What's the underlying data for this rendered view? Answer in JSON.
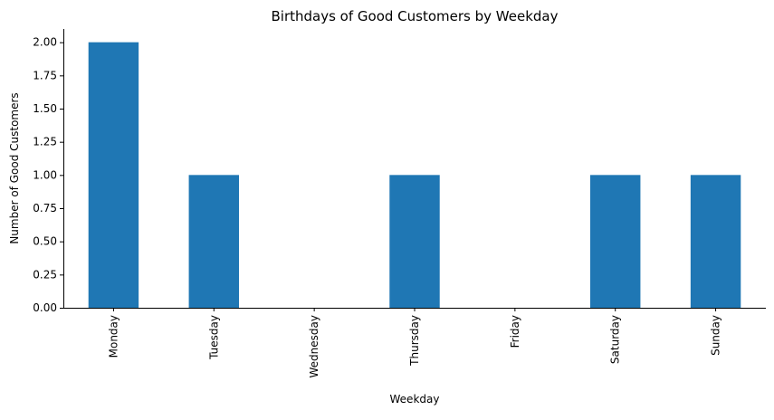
{
  "chart_data": {
    "type": "bar",
    "title": "Birthdays of Good Customers by Weekday",
    "xlabel": "Weekday",
    "ylabel": "Number of Good Customers",
    "categories": [
      "Monday",
      "Tuesday",
      "Wednesday",
      "Thursday",
      "Friday",
      "Saturday",
      "Sunday"
    ],
    "values": [
      2,
      1,
      0,
      1,
      0,
      1,
      1
    ],
    "ylim": [
      0,
      2.1
    ],
    "yticks": [
      "0.00",
      "0.25",
      "0.50",
      "0.75",
      "1.00",
      "1.25",
      "1.50",
      "1.75",
      "2.00"
    ],
    "grid": false,
    "bar_color": "#1f77b4",
    "spines": [
      "left",
      "bottom"
    ]
  }
}
